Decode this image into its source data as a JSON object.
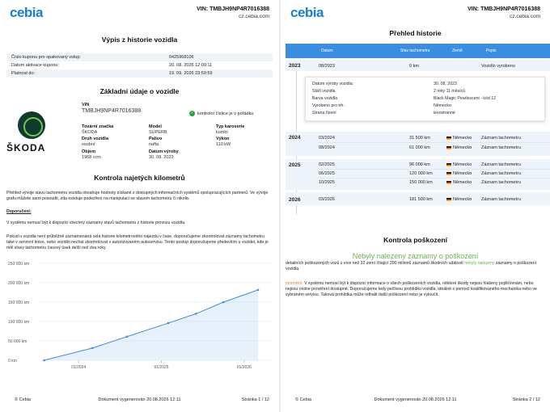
{
  "header": {
    "logo": "cebia",
    "vin_label": "VIN: TMBJH9NP4R7016388",
    "site": "cz.cebia.com"
  },
  "left": {
    "title": "Výpis z historie vozidla",
    "coupon": [
      {
        "k": "Číslo kuponu pro opakovaný vstup:",
        "v": "0425968106"
      },
      {
        "k": "Datum aktivace kuponu:",
        "v": "20. 08. 2026 12:09:11"
      },
      {
        "k": "Platnost do:",
        "v": "19. 09. 2026 23:59:59"
      }
    ],
    "basic_title": "Základní údaje o vozidle",
    "brand_word": "ŠKODA",
    "vin_field": {
      "label": "VIN",
      "value": "TMBJH9NP4R7016388"
    },
    "vin_ok": "kontrolní číslice je v pořádku",
    "fields": [
      {
        "label": "Tovární značka",
        "value": "ŠKODA"
      },
      {
        "label": "Model",
        "value": "SUPERB"
      },
      {
        "label": "Typ karoserie",
        "value": "kombi"
      },
      {
        "label": "Druh vozidla",
        "value": "osobní"
      },
      {
        "label": "Palivo",
        "value": "nafta"
      },
      {
        "label": "Výkon",
        "value": "110 kW"
      },
      {
        "label": "Objem",
        "value": "1968 ccm"
      },
      {
        "label": "Datum výroby",
        "value": "30. 08. 2023"
      }
    ],
    "km_title": "Kontrola najetých kilometrů",
    "p1": "Přehled vývoje stavu tachometru vozidla obsahuje hodnoty získané z dostupných informačních systémů spolupracujících partnerů. Ve vývoje grafu můžete sami posoudit, zda existuje podezření na manipulaci se stavem tachometru či nikoliv.",
    "p2_label": "Doporučení:",
    "p3": "V systému nemusí být k dispozici všechny záznamy stavů tachometru z historie provozu vozidla.",
    "p4": "Pokud u vozidla není průběžně zaznamenaná celá historie kilometrového nájezdu v čase, doporučujeme zkontrolovat záznamy tachometru také v servisní knize, nebo vozidlo nechat zkontrolovat v autorizovaném autoservisu. Tento postup doporučujeme především u vozidel, kde je měl stavy tachometru časový úsek delší než dva roky.",
    "footer": {
      "copy": "© Cebia",
      "generated": "Dokument vygenerován 20.08.2026 12:11",
      "page": "Stránka 1 / 12"
    }
  },
  "chart_data": {
    "type": "line",
    "y_ticks": [
      "250 000 km",
      "200 000 km",
      "150 000 km",
      "100 000 km",
      "50 000 km",
      "0 km"
    ],
    "x_ticks": [
      "01/2024",
      "01/2025",
      "01/2026"
    ],
    "ylim": [
      0,
      250000
    ],
    "xlim": [
      "2023-07",
      "2026-05"
    ],
    "color": "#3a8ee0",
    "points": [
      {
        "x": "2023-08",
        "y": 0
      },
      {
        "x": "2024-03",
        "y": 31500
      },
      {
        "x": "2024-08",
        "y": 61000
      },
      {
        "x": "2025-02",
        "y": 96000
      },
      {
        "x": "2025-06",
        "y": 120000
      },
      {
        "x": "2025-10",
        "y": 150000
      },
      {
        "x": "2026-03",
        "y": 181500
      }
    ]
  },
  "right": {
    "title": "Přehled historie",
    "cols": [
      "Datum",
      "Stav tachometru",
      "Země",
      "Popis"
    ],
    "years": [
      "2023",
      "2024",
      "2025",
      "2026"
    ],
    "rows": [
      {
        "date": "08/2023",
        "km": "0 km",
        "country": "",
        "desc": "Vozidlo vyrobeno"
      },
      {
        "date": "03/2024",
        "km": "31 500 km",
        "country": "Německo",
        "desc": "Záznam tachometru"
      },
      {
        "date": "08/2024",
        "km": "61 000 km",
        "country": "Německo",
        "desc": "Záznam tachometru"
      },
      {
        "date": "02/2025",
        "km": "96 000 km",
        "country": "Německo",
        "desc": "Záznam tachometru"
      },
      {
        "date": "06/2025",
        "km": "120 000 km",
        "country": "Německo",
        "desc": "Záznam tachometru"
      },
      {
        "date": "10/2025",
        "km": "150 000 km",
        "country": "Německo",
        "desc": "Záznam tachometru"
      },
      {
        "date": "03/2026",
        "km": "181 500 km",
        "country": "Německo",
        "desc": "Záznam tachometru"
      }
    ],
    "popup": [
      {
        "k": "Datum výroby vozidla:",
        "v": "30. 08. 2023"
      },
      {
        "k": "Stáří vozidla",
        "v": "2 roky 11 měsíců"
      },
      {
        "k": "Barva vozidla",
        "v": "Black Magic Pearlescent - kód 12"
      },
      {
        "k": "Vyrobeno pro trh:",
        "v": "Německo"
      },
      {
        "k": "Strana řízení",
        "v": "levostranné"
      }
    ],
    "dmg_title": "Kontrola poškození",
    "dmg_sub": "Nebyly nalezeny záznamy o poškození",
    "dmg_p1a": "detailních poškozených vozů z více než 32 zemí čítající 200 milionů záznamů škodních událostí",
    "dmg_p1b": "nebyly nalezeny",
    "dmg_p1c": "záznamy o poškození vozidla.",
    "dmg_p2a": "ozornění:",
    "dmg_p2b": "V systému nemusí být k dispozici informace o všech poškozeních vozidla, některé škody nejsou hlášeny pojišťovnám, nebo nejsou online prověření dostupné. Doporučujeme tedy pečlivou prohlídku vozidla, ideálně s pomocí kvalifikovaného mechanika nebo ve vybraném servisu. Taková prohlídka může odhalit další poškození nebo je vyloučit.",
    "footer": {
      "copy": "© Cebia",
      "generated": "Dokument vygenerován 20.08.2026 12:11",
      "page": "Stránka 2 / 12"
    }
  }
}
